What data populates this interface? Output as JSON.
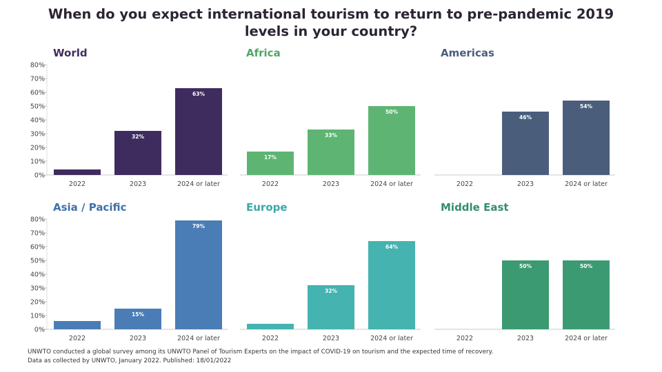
{
  "title": {
    "line1": "When do you expect international tourism to return to pre-pandemic 2019",
    "line2": "levels in your country?"
  },
  "footnote": {
    "line1": "UNWTO conducted a global survey among its UNWTO Panel of Tourism Experts on the impact of COVID-19 on tourism and the expected time of recovery.",
    "line2": "Data as collected by UNWTO, January 2022. Published: 18/01/2022"
  },
  "chart_data": [
    {
      "type": "bar",
      "title": "World",
      "color": "#3f2c5e",
      "title_color": "#3f2c5e",
      "categories": [
        "2022",
        "2023",
        "2024 or later"
      ],
      "values": [
        4,
        32,
        63
      ],
      "data_labels": [
        "",
        "32%",
        "63%"
      ],
      "ylim": [
        0,
        80
      ],
      "yticks": [
        "0%",
        "10%",
        "20%",
        "30%",
        "40%",
        "50%",
        "60%",
        "70%",
        "80%"
      ]
    },
    {
      "type": "bar",
      "title": "Africa",
      "color": "#5eb573",
      "title_color": "#4fa765",
      "categories": [
        "2022",
        "2023",
        "2024 or later"
      ],
      "values": [
        17,
        33,
        50
      ],
      "data_labels": [
        "17%",
        "33%",
        "50%"
      ],
      "ylim": [
        0,
        80
      ]
    },
    {
      "type": "bar",
      "title": "Americas",
      "color": "#4a5e7c",
      "title_color": "#4a5e7c",
      "categories": [
        "2022",
        "2023",
        "2024 or later"
      ],
      "values": [
        0,
        46,
        54
      ],
      "data_labels": [
        "",
        "46%",
        "54%"
      ],
      "ylim": [
        0,
        80
      ]
    },
    {
      "type": "bar",
      "title": "Asia / Pacific",
      "color": "#4a7db5",
      "title_color": "#3f71a8",
      "categories": [
        "2022",
        "2023",
        "2024 or later"
      ],
      "values": [
        6,
        15,
        79
      ],
      "data_labels": [
        "",
        "15%",
        "79%"
      ],
      "ylim": [
        0,
        80
      ],
      "yticks": [
        "0%",
        "10%",
        "20%",
        "30%",
        "40%",
        "50%",
        "60%",
        "70%",
        "80%"
      ]
    },
    {
      "type": "bar",
      "title": "Europe",
      "color": "#45b3b0",
      "title_color": "#3aa7a8",
      "categories": [
        "2022",
        "2023",
        "2024 or later"
      ],
      "values": [
        4,
        32,
        64
      ],
      "data_labels": [
        "",
        "32%",
        "64%"
      ],
      "ylim": [
        0,
        80
      ]
    },
    {
      "type": "bar",
      "title": "Middle East",
      "color": "#3c9a72",
      "title_color": "#328e68",
      "categories": [
        "2022",
        "2023",
        "2024 or later"
      ],
      "values": [
        0,
        50,
        50
      ],
      "data_labels": [
        "",
        "50%",
        "50%"
      ],
      "ylim": [
        0,
        80
      ]
    }
  ]
}
